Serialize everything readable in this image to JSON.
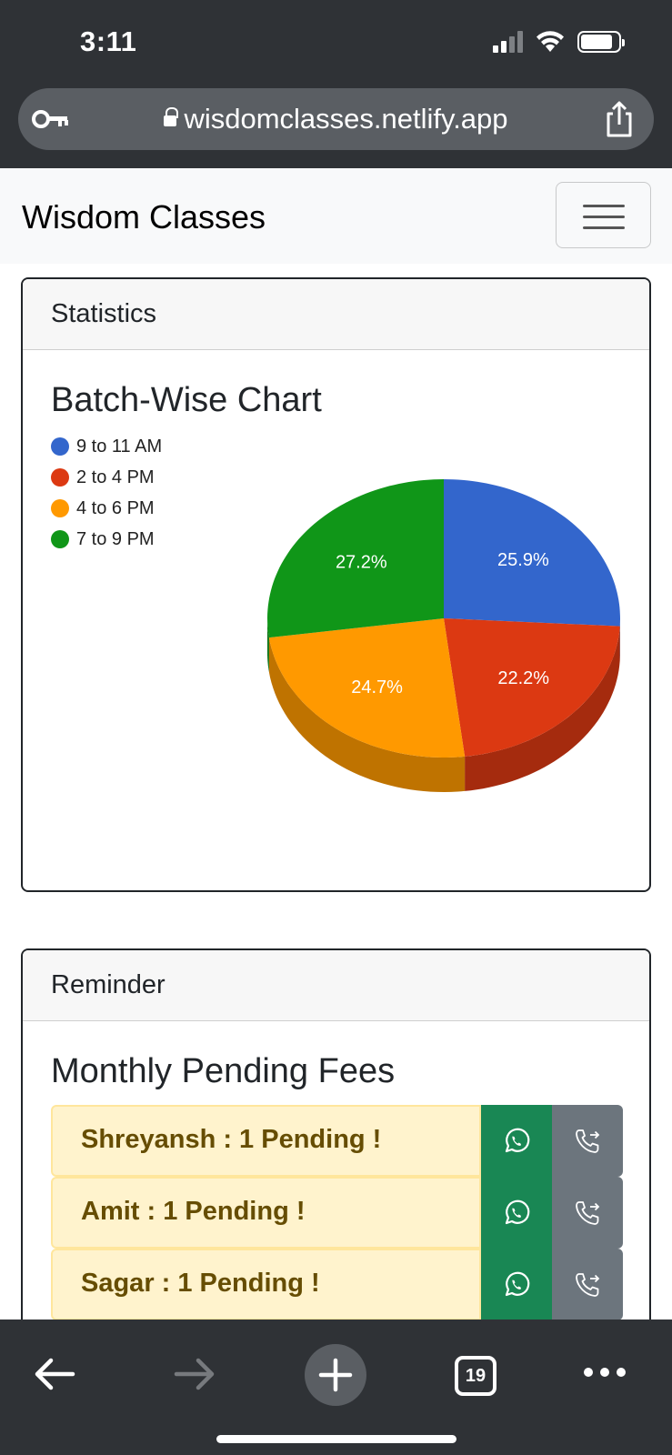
{
  "status_bar": {
    "time": "3:11"
  },
  "browser": {
    "url": "wisdomclasses.netlify.app",
    "tab_count": "19"
  },
  "navbar": {
    "brand": "Wisdom Classes"
  },
  "statistics": {
    "header": "Statistics",
    "title": "Batch-Wise Chart"
  },
  "chart_data": {
    "type": "pie",
    "title": "Batch-Wise Chart",
    "legend_position": "top-left",
    "slices": [
      {
        "label": "9 to 11 AM",
        "value": 25.9,
        "display": "25.9%",
        "color": "#3366cc"
      },
      {
        "label": "2 to 4 PM",
        "value": 22.2,
        "display": "22.2%",
        "color": "#dc3912"
      },
      {
        "label": "4 to 6 PM",
        "value": 24.7,
        "display": "24.7%",
        "color": "#ff9900"
      },
      {
        "label": "7 to 9 PM",
        "value": 27.2,
        "display": "27.2%",
        "color": "#109618"
      }
    ]
  },
  "reminder": {
    "header": "Reminder",
    "title": "Monthly Pending Fees",
    "items": [
      {
        "text": "Shreyansh : 1 Pending !"
      },
      {
        "text": "Amit : 1 Pending !"
      },
      {
        "text": "Sagar : 1 Pending !"
      }
    ]
  },
  "icons": {
    "key": "key-icon",
    "share": "share-icon",
    "whatsapp": "whatsapp-icon",
    "call": "phone-forward-icon",
    "back": "back-arrow-icon",
    "forward": "forward-arrow-icon",
    "new_tab": "plus-icon",
    "more": "more-icon"
  }
}
